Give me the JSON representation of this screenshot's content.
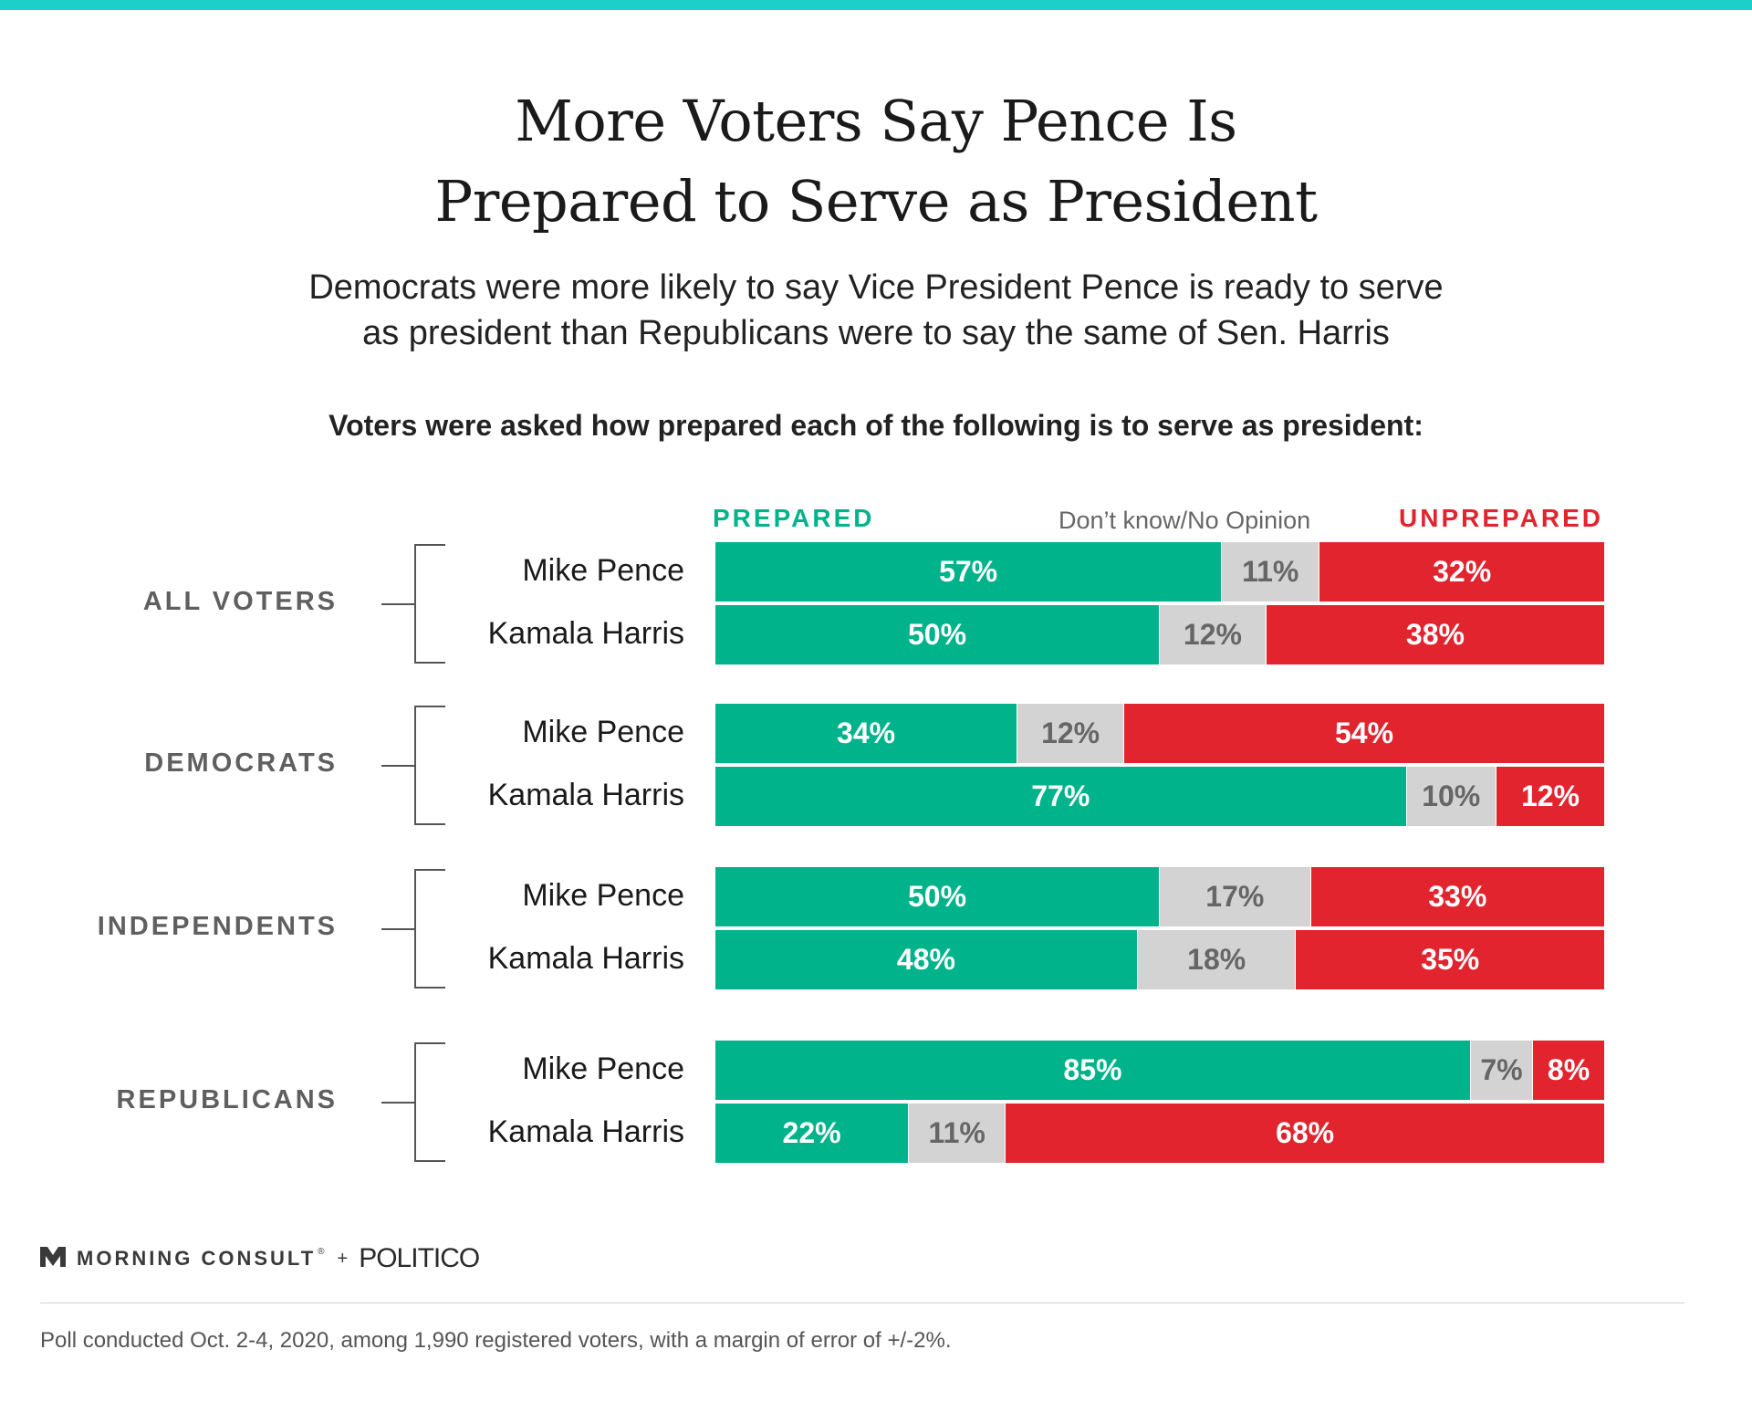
{
  "title": [
    "More Voters Say Pence Is",
    "Prepared to Serve as President"
  ],
  "subtitle": [
    "Democrats were more likely to say Vice President Pence is ready to serve",
    "as president than Republicans were to say the same of Sen. Harris"
  ],
  "question": "Voters were asked how prepared each of the following is to serve as president:",
  "legend": {
    "prepared": "PREPARED",
    "dont_know": "Don’t know/No Opinion",
    "unprepared": "UNPREPARED"
  },
  "colors": {
    "prepared": "#00b38a",
    "dont_know": "#d3d3d3",
    "unprepared": "#e2242f",
    "accent": "#1dcfc9"
  },
  "chart_data": {
    "type": "bar",
    "stacked": true,
    "orientation": "horizontal",
    "series_names": [
      "PREPARED",
      "Don’t know/No Opinion",
      "UNPREPARED"
    ],
    "groups": [
      {
        "label": "ALL VOTERS",
        "rows": [
          {
            "label": "Mike Pence",
            "values": [
              57,
              11,
              32
            ]
          },
          {
            "label": "Kamala Harris",
            "values": [
              50,
              12,
              38
            ]
          }
        ]
      },
      {
        "label": "DEMOCRATS",
        "rows": [
          {
            "label": "Mike Pence",
            "values": [
              34,
              12,
              54
            ]
          },
          {
            "label": "Kamala Harris",
            "values": [
              77,
              10,
              12
            ]
          }
        ]
      },
      {
        "label": "INDEPENDENTS",
        "rows": [
          {
            "label": "Mike Pence",
            "values": [
              50,
              17,
              33
            ]
          },
          {
            "label": "Kamala Harris",
            "values": [
              48,
              18,
              35
            ]
          }
        ]
      },
      {
        "label": "REPUBLICANS",
        "rows": [
          {
            "label": "Mike Pence",
            "values": [
              85,
              7,
              8
            ]
          },
          {
            "label": "Kamala Harris",
            "values": [
              22,
              11,
              68
            ]
          }
        ]
      }
    ],
    "unit": "%"
  },
  "footer": {
    "brand": "MORNING CONSULT",
    "trademark": "®",
    "plus": "+",
    "partner": "POLITICO",
    "note": "Poll conducted Oct. 2-4, 2020, among 1,990 registered voters, with a margin of error of +/-2%."
  }
}
